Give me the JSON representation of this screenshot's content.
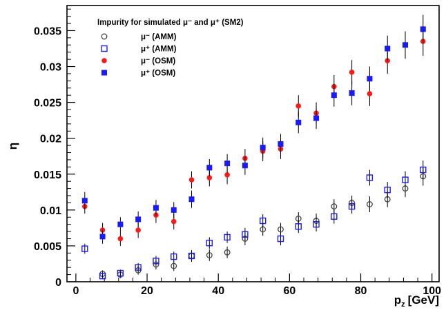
{
  "chart_data": {
    "type": "scatter",
    "title": "",
    "legend_title": "Impurity for simulated μ⁻ and μ⁺ (SM2)",
    "legend_placement": "top-left",
    "xlabel": "p_z [GeV]",
    "xlabel_main": "p",
    "xlabel_sub": "z",
    "xlabel_unit": "[GeV]",
    "ylabel": "η",
    "xlim": [
      -2.5,
      102
    ],
    "ylim": [
      0,
      0.0385
    ],
    "xticks": [
      0,
      20,
      40,
      60,
      80,
      100
    ],
    "xtick_labels": [
      "0",
      "20",
      "40",
      "60",
      "80",
      "100"
    ],
    "yticks": [
      0,
      0.005,
      0.01,
      0.015,
      0.02,
      0.025,
      0.03,
      0.035
    ],
    "ytick_labels": [
      "0",
      "0.005",
      "0.01",
      "0.015",
      "0.02",
      "0.025",
      "0.03",
      "0.035"
    ],
    "grid": false,
    "series": [
      {
        "name": "μ⁻ (AMM)",
        "marker": "open-circle",
        "color": "#444444",
        "x": [
          7.5,
          12.5,
          17.5,
          22.5,
          27.5,
          32.5,
          37.5,
          42.5,
          47.5,
          52.5,
          57.5,
          62.5,
          67.5,
          72.5,
          77.5,
          82.5,
          87.5,
          92.5,
          97.5
        ],
        "y": [
          0.0011,
          0.001,
          0.0016,
          0.0024,
          0.0022,
          0.0036,
          0.0037,
          0.0041,
          0.006,
          0.0073,
          0.0073,
          0.0088,
          0.0085,
          0.0105,
          0.011,
          0.0108,
          0.0115,
          0.013,
          0.0147
        ],
        "err": [
          0.0005,
          0.0005,
          0.0006,
          0.0007,
          0.0007,
          0.0008,
          0.0008,
          0.0008,
          0.0009,
          0.0009,
          0.0009,
          0.0009,
          0.001,
          0.001,
          0.001,
          0.0011,
          0.0011,
          0.0012,
          0.0013
        ]
      },
      {
        "name": "μ⁺ (AMM)",
        "marker": "open-square",
        "color": "#1a1aff",
        "x": [
          2.5,
          7.5,
          12.5,
          17.5,
          22.5,
          27.5,
          32.5,
          37.5,
          42.5,
          47.5,
          52.5,
          57.5,
          62.5,
          67.5,
          72.5,
          77.5,
          82.5,
          87.5,
          92.5,
          97.5
        ],
        "y": [
          0.0046,
          0.0008,
          0.0012,
          0.002,
          0.0029,
          0.0035,
          0.0036,
          0.0054,
          0.0062,
          0.0066,
          0.0085,
          0.006,
          0.0077,
          0.008,
          0.0091,
          0.0105,
          0.0145,
          0.0128,
          0.0142,
          0.0156
        ],
        "err": [
          0.0007,
          0.0004,
          0.0005,
          0.0006,
          0.0007,
          0.0007,
          0.0008,
          0.0008,
          0.0008,
          0.0009,
          0.0009,
          0.0009,
          0.0009,
          0.001,
          0.001,
          0.001,
          0.0011,
          0.0011,
          0.0012,
          0.0013
        ]
      },
      {
        "name": "μ⁻ (OSM)",
        "marker": "filled-circle",
        "color": "#ff1a1a",
        "x": [
          2.5,
          7.5,
          12.5,
          17.5,
          22.5,
          27.5,
          32.5,
          37.5,
          42.5,
          47.5,
          52.5,
          57.5,
          62.5,
          67.5,
          72.5,
          77.5,
          82.5,
          87.5,
          92.5,
          97.5
        ],
        "y": [
          0.0105,
          0.0072,
          0.006,
          0.0072,
          0.0093,
          0.0084,
          0.0142,
          0.0145,
          0.0149,
          0.0172,
          0.0182,
          0.0185,
          0.0245,
          0.0235,
          0.0272,
          0.0292,
          0.0262,
          0.0308,
          0.033,
          0.0335
        ],
        "err": [
          0.001,
          0.001,
          0.001,
          0.0011,
          0.0011,
          0.0011,
          0.0012,
          0.0012,
          0.0013,
          0.0013,
          0.0014,
          0.0014,
          0.0015,
          0.0015,
          0.0016,
          0.0017,
          0.0017,
          0.0018,
          0.0019,
          0.002
        ]
      },
      {
        "name": "μ⁺ (OSM)",
        "marker": "filled-square",
        "color": "#1a1aff",
        "x": [
          2.5,
          7.5,
          12.5,
          17.5,
          22.5,
          27.5,
          32.5,
          37.5,
          42.5,
          47.5,
          52.5,
          57.5,
          62.5,
          67.5,
          72.5,
          77.5,
          82.5,
          87.5,
          92.5,
          97.5
        ],
        "y": [
          0.0113,
          0.0063,
          0.008,
          0.0087,
          0.0103,
          0.01,
          0.0115,
          0.0159,
          0.0165,
          0.0162,
          0.0187,
          0.0192,
          0.0222,
          0.0228,
          0.026,
          0.0263,
          0.0283,
          0.0325,
          0.033,
          0.0352
        ],
        "err": [
          0.0012,
          0.001,
          0.001,
          0.0011,
          0.0011,
          0.0011,
          0.0012,
          0.0012,
          0.0013,
          0.0013,
          0.0014,
          0.0014,
          0.0015,
          0.0015,
          0.0016,
          0.0017,
          0.0017,
          0.0018,
          0.0019,
          0.002
        ]
      }
    ]
  }
}
